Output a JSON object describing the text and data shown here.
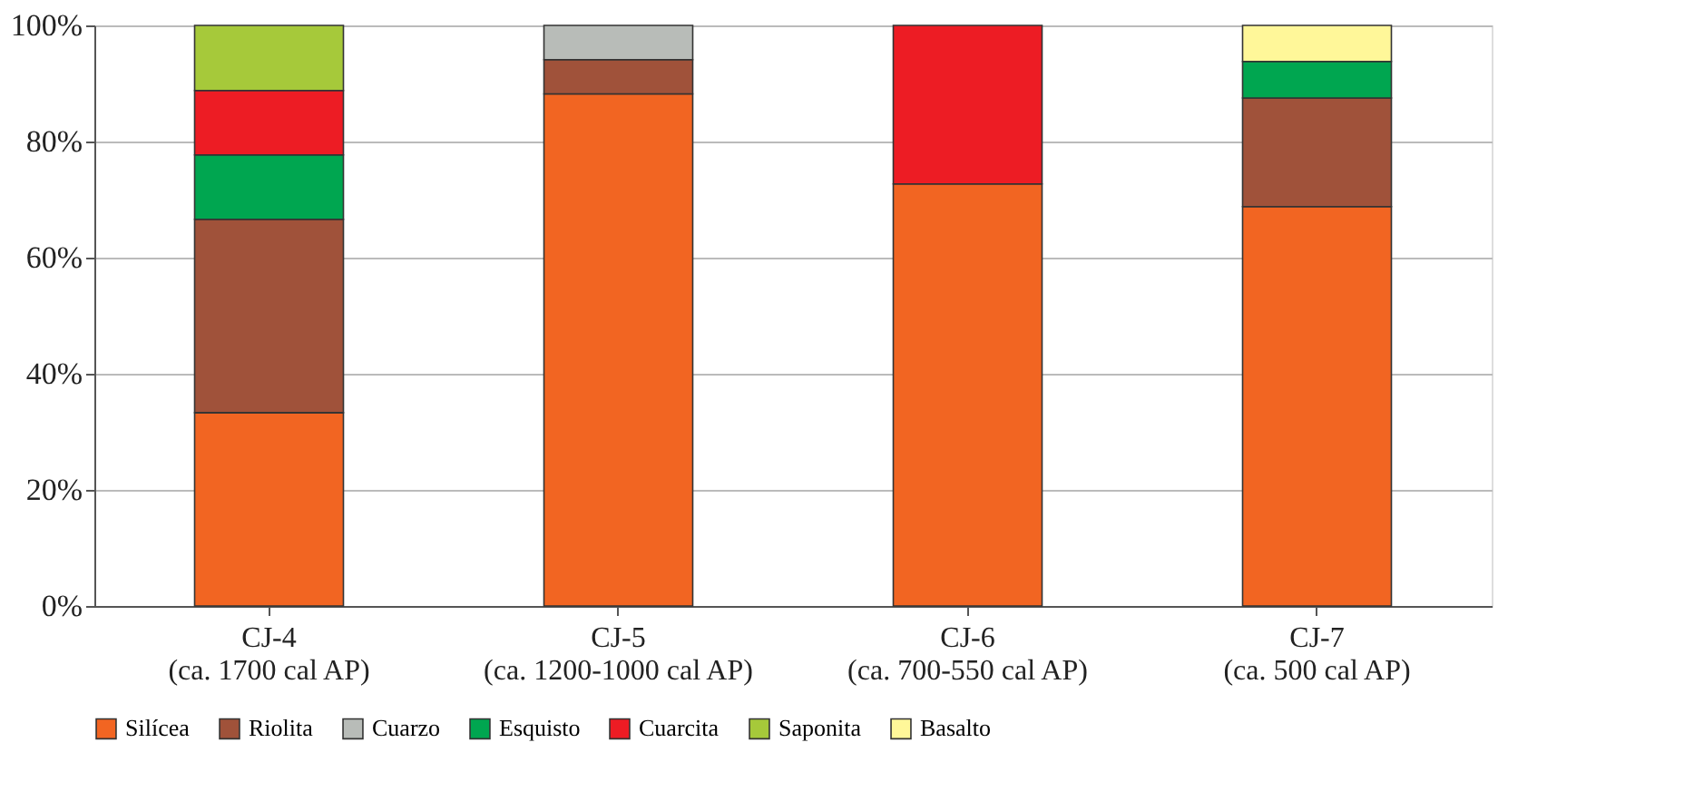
{
  "chart_data": {
    "type": "bar",
    "stacked": true,
    "categories": [
      "CJ-4\n(ca. 1700 cal AP)",
      "CJ-5\n(ca. 1200-1000 cal AP)",
      "CJ-6\n(ca. 700-550 cal AP)",
      "CJ-7\n(ca. 500 cal AP)"
    ],
    "series": [
      {
        "name": "Silícea",
        "color": "#f26522",
        "values": [
          33.3,
          88.2,
          72.7,
          68.8
        ]
      },
      {
        "name": "Riolita",
        "color": "#a0523a",
        "values": [
          33.3,
          5.9,
          null,
          18.7
        ]
      },
      {
        "name": "Cuarzo",
        "color": "#b8bcb8",
        "values": [
          null,
          5.9,
          null,
          null
        ]
      },
      {
        "name": "Esquisto",
        "color": "#00a650",
        "values": [
          11.1,
          null,
          null,
          6.3
        ]
      },
      {
        "name": "Cuarcita",
        "color": "#ed1c24",
        "values": [
          11.1,
          null,
          27.3,
          null
        ]
      },
      {
        "name": "Saponita",
        "color": "#a6c93a",
        "values": [
          11.2,
          null,
          null,
          null
        ]
      },
      {
        "name": "Basalto",
        "color": "#fff799",
        "values": [
          null,
          null,
          null,
          6.2
        ]
      }
    ],
    "ylim": [
      0,
      100
    ],
    "yticks": [
      {
        "value": 0,
        "label": "0%"
      },
      {
        "value": 20,
        "label": "20%"
      },
      {
        "value": 40,
        "label": "40%"
      },
      {
        "value": 60,
        "label": "60%"
      },
      {
        "value": 80,
        "label": "80%"
      },
      {
        "value": 100,
        "label": "100%"
      }
    ],
    "grid": "y",
    "legend": "bottom"
  }
}
